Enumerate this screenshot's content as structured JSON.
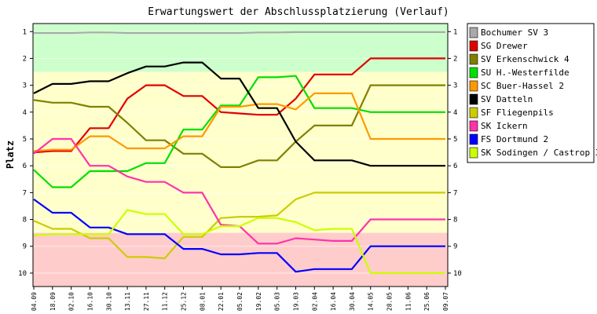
{
  "chart_data": {
    "type": "line",
    "title": "Erwartungswert der Abschlussplatzierung (Verlauf)",
    "xlabel": "",
    "ylabel": "Platz",
    "ylim": [
      0.7,
      10.5
    ],
    "y_inverted": true,
    "y_ticks": [
      "1",
      "2",
      "3",
      "4",
      "5",
      "6",
      "7",
      "8",
      "9",
      "10"
    ],
    "x_ticks": [
      "04.09",
      "18.09",
      "02.10",
      "16.10",
      "30.10",
      "13.11",
      "27.11",
      "11.12",
      "25.12",
      "08.01",
      "22.01",
      "05.02",
      "19.02",
      "05.03",
      "19.03",
      "02.04",
      "16.04",
      "30.04",
      "14.05",
      "28.05",
      "11.06",
      "25.06",
      "09.07"
    ],
    "bands": [
      {
        "from": 0.7,
        "to": 2.5,
        "color": "#ccffcc"
      },
      {
        "from": 2.5,
        "to": 8.5,
        "color": "#ffffcc"
      },
      {
        "from": 8.5,
        "to": 10.5,
        "color": "#ffcccc"
      }
    ],
    "grid": "horizontal",
    "legend_position": "right",
    "series": [
      {
        "name": "Bochumer SV 3",
        "color": "#a9a9a9",
        "values": [
          1.05,
          1.05,
          1.05,
          1.03,
          1.03,
          1.05,
          1.05,
          1.05,
          1.05,
          1.05,
          1.05,
          1.05,
          1.03,
          1.03,
          1.02,
          1.02,
          1.02,
          1.02,
          1.02,
          1.02,
          1.02,
          1.02,
          1.02
        ]
      },
      {
        "name": "SG Drewer",
        "color": "#e00000",
        "values": [
          5.5,
          5.45,
          5.45,
          4.6,
          4.6,
          3.5,
          3.0,
          3.0,
          3.4,
          3.4,
          4.0,
          4.05,
          4.1,
          4.1,
          3.5,
          2.6,
          2.6,
          2.6,
          2.0,
          2.0,
          2.0,
          2.0,
          2.0
        ]
      },
      {
        "name": "SV Erkenschwick 4",
        "color": "#808000",
        "values": [
          3.55,
          3.65,
          3.65,
          3.8,
          3.8,
          4.4,
          5.05,
          5.05,
          5.55,
          5.55,
          6.05,
          6.05,
          5.8,
          5.8,
          5.1,
          4.5,
          4.5,
          4.5,
          3.0,
          3.0,
          3.0,
          3.0,
          3.0
        ]
      },
      {
        "name": "SU H.-Westerfilde",
        "color": "#00e000",
        "values": [
          6.15,
          6.8,
          6.8,
          6.2,
          6.2,
          6.2,
          5.9,
          5.9,
          4.65,
          4.65,
          3.75,
          3.75,
          2.7,
          2.7,
          2.65,
          3.85,
          3.85,
          3.85,
          4.0,
          4.0,
          4.0,
          4.0,
          4.0
        ]
      },
      {
        "name": "SC Buer-Hassel 2",
        "color": "#ff9900",
        "values": [
          5.45,
          5.4,
          5.4,
          4.9,
          4.9,
          5.35,
          5.35,
          5.35,
          4.9,
          4.9,
          3.8,
          3.8,
          3.7,
          3.7,
          3.9,
          3.3,
          3.3,
          3.3,
          5.0,
          5.0,
          5.0,
          5.0,
          5.0
        ]
      },
      {
        "name": "SV Datteln",
        "color": "#000000",
        "values": [
          3.3,
          2.95,
          2.95,
          2.85,
          2.85,
          2.55,
          2.3,
          2.3,
          2.15,
          2.15,
          2.75,
          2.75,
          3.85,
          3.85,
          5.1,
          5.8,
          5.8,
          5.8,
          6.0,
          6.0,
          6.0,
          6.0,
          6.0
        ]
      },
      {
        "name": "SF Fliegenpils",
        "color": "#cccc00",
        "values": [
          8.05,
          8.35,
          8.35,
          8.7,
          8.7,
          9.4,
          9.4,
          9.45,
          8.65,
          8.65,
          7.95,
          7.9,
          7.9,
          7.85,
          7.25,
          7.0,
          7.0,
          7.0,
          7.0,
          7.0,
          7.0,
          7.0,
          7.0
        ]
      },
      {
        "name": "SK Ickern",
        "color": "#ff33aa",
        "values": [
          5.55,
          5.0,
          5.0,
          6.0,
          6.0,
          6.4,
          6.6,
          6.6,
          7.0,
          7.0,
          8.2,
          8.25,
          8.9,
          8.9,
          8.7,
          8.75,
          8.8,
          8.8,
          8.0,
          8.0,
          8.0,
          8.0,
          8.0
        ]
      },
      {
        "name": "FS Dortmund 2",
        "color": "#0000ff",
        "values": [
          7.25,
          7.75,
          7.75,
          8.3,
          8.3,
          8.55,
          8.55,
          8.55,
          9.1,
          9.1,
          9.3,
          9.3,
          9.25,
          9.25,
          9.95,
          9.85,
          9.85,
          9.85,
          9.0,
          9.0,
          9.0,
          9.0,
          9.0
        ]
      },
      {
        "name": "SK Sodingen / Castrop 3",
        "color": "#ccff00",
        "values": [
          8.6,
          8.55,
          8.55,
          8.55,
          8.55,
          7.65,
          7.8,
          7.8,
          8.55,
          8.55,
          8.25,
          8.25,
          7.95,
          7.95,
          8.1,
          8.4,
          8.35,
          8.35,
          10.0,
          10.0,
          10.0,
          10.0,
          10.0
        ]
      }
    ]
  }
}
